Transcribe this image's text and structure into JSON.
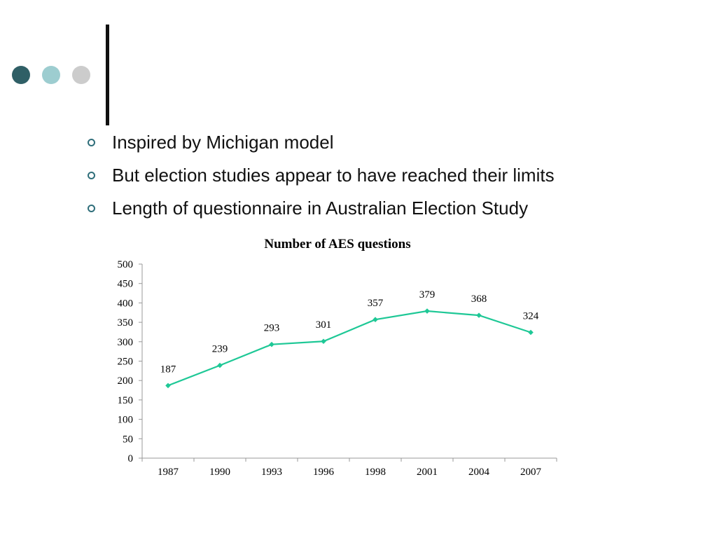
{
  "slide": {
    "bullets": [
      {
        "text": "Inspired by Michigan model"
      },
      {
        "text": "But election studies appear to have reached their limits"
      },
      {
        "text": "Length of questionnaire in Australian Election Study"
      }
    ],
    "decor_colors": [
      "#2f5f66",
      "#9dcdd0",
      "#cccccc"
    ]
  },
  "chart_data": {
    "type": "line",
    "title": "Number of AES questions",
    "categories": [
      "1987",
      "1990",
      "1993",
      "1996",
      "1998",
      "2001",
      "2004",
      "2007"
    ],
    "series": [
      {
        "values": [
          187,
          239,
          293,
          301,
          357,
          379,
          368,
          324
        ],
        "color": "#1ec896",
        "marker": "diamond"
      }
    ],
    "ylim": [
      0,
      500
    ],
    "yticks": [
      0,
      50,
      100,
      150,
      200,
      250,
      300,
      350,
      400,
      450,
      500
    ],
    "grid": false,
    "legend": "none",
    "data_labels": true
  }
}
